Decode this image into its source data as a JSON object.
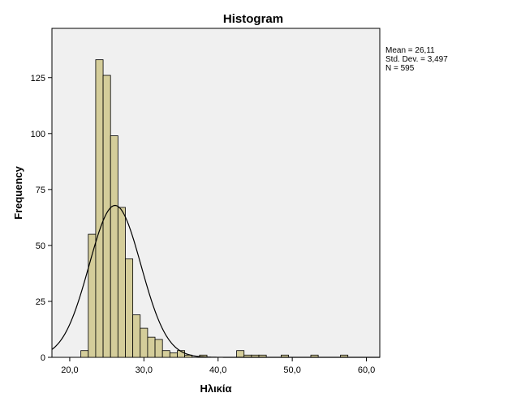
{
  "chart_data": {
    "type": "histogram",
    "title": "Histogram",
    "xlabel": "Ηλικία",
    "ylabel": "Frequency",
    "xlim": [
      17.6,
      61.8
    ],
    "ylim": [
      0,
      147
    ],
    "x_ticks": [
      20,
      30,
      40,
      50,
      60
    ],
    "x_tick_labels": [
      "20,0",
      "30,0",
      "40,0",
      "50,0",
      "60,0"
    ],
    "y_ticks": [
      0,
      25,
      50,
      75,
      100,
      125
    ],
    "y_tick_labels": [
      "0",
      "25",
      "50",
      "75",
      "100",
      "125"
    ],
    "bin_width": 1,
    "bins": [
      {
        "start": 21.5,
        "count": 3
      },
      {
        "start": 22.5,
        "count": 55
      },
      {
        "start": 23.5,
        "count": 133
      },
      {
        "start": 24.5,
        "count": 126
      },
      {
        "start": 25.5,
        "count": 99
      },
      {
        "start": 26.5,
        "count": 67
      },
      {
        "start": 27.5,
        "count": 44
      },
      {
        "start": 28.5,
        "count": 19
      },
      {
        "start": 29.5,
        "count": 13
      },
      {
        "start": 30.5,
        "count": 9
      },
      {
        "start": 31.5,
        "count": 8
      },
      {
        "start": 32.5,
        "count": 3
      },
      {
        "start": 33.5,
        "count": 2
      },
      {
        "start": 34.5,
        "count": 3
      },
      {
        "start": 35.5,
        "count": 1
      },
      {
        "start": 37.5,
        "count": 1
      },
      {
        "start": 42.5,
        "count": 3
      },
      {
        "start": 43.5,
        "count": 1
      },
      {
        "start": 44.5,
        "count": 1
      },
      {
        "start": 45.5,
        "count": 1
      },
      {
        "start": 48.5,
        "count": 1
      },
      {
        "start": 52.5,
        "count": 1
      },
      {
        "start": 56.5,
        "count": 1
      }
    ],
    "normal_curve": {
      "mean": 26.11,
      "std_dev": 3.497,
      "n": 595
    },
    "stats": {
      "mean_label": "Mean = 26,11",
      "std_label": "Std. Dev. = 3,497",
      "n_label": "N = 595"
    },
    "colors": {
      "bar_fill": "#d4cd9a",
      "bar_stroke": "#000000",
      "plot_background": "#f0f0f0",
      "curve": "#000000"
    },
    "grid": false,
    "legend": "none"
  }
}
